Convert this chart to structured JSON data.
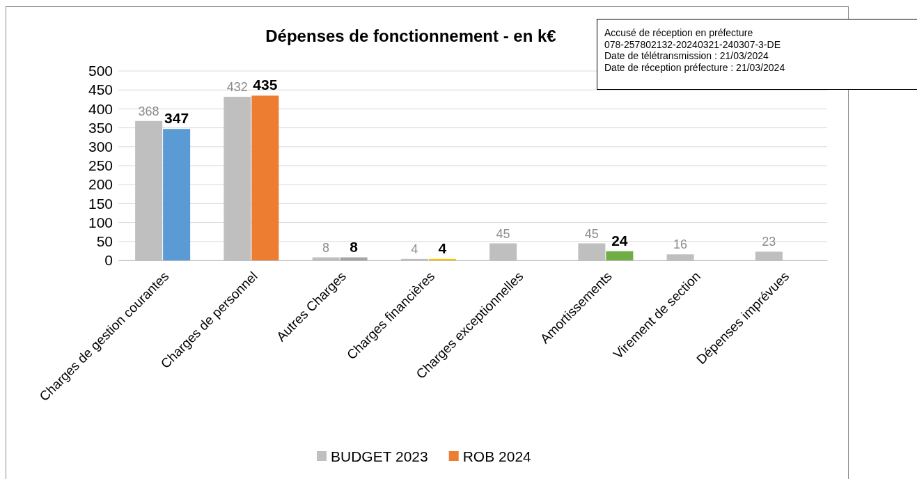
{
  "chart_data": {
    "type": "bar",
    "title": "Dépenses de fonctionnement - en k€",
    "categories": [
      "Charges de gestion courantes",
      "Charges de personnel",
      "Autres Charges",
      "Charges financières",
      "Charges exceptionnelles",
      "Amortissements",
      "Virement de section",
      "Dépenses imprévues"
    ],
    "series": [
      {
        "name": "BUDGET 2023",
        "color": "#bfbfbf",
        "values": [
          368,
          432,
          8,
          4,
          45,
          45,
          16,
          23
        ]
      },
      {
        "name": "ROB 2024",
        "color": "#ed7d31",
        "colors": [
          "#5b9bd5",
          "#ed7d31",
          "#a5a5a5",
          "#ffc000",
          null,
          "#70ad47",
          null,
          null
        ],
        "values": [
          347,
          435,
          8,
          4,
          null,
          24,
          null,
          null
        ]
      }
    ],
    "ylim": [
      0,
      500
    ],
    "yticks": [
      0,
      50,
      100,
      150,
      200,
      250,
      300,
      350,
      400,
      450,
      500
    ],
    "grid": "y",
    "legend": "bottom",
    "data_labels": true,
    "annotations": [
      "Accusé de réception en préfecture",
      "078-257802132-20240321-240307-3-DE",
      "Date de télétransmission : 21/03/2024",
      "Date de réception préfecture : 21/03/2024"
    ]
  }
}
